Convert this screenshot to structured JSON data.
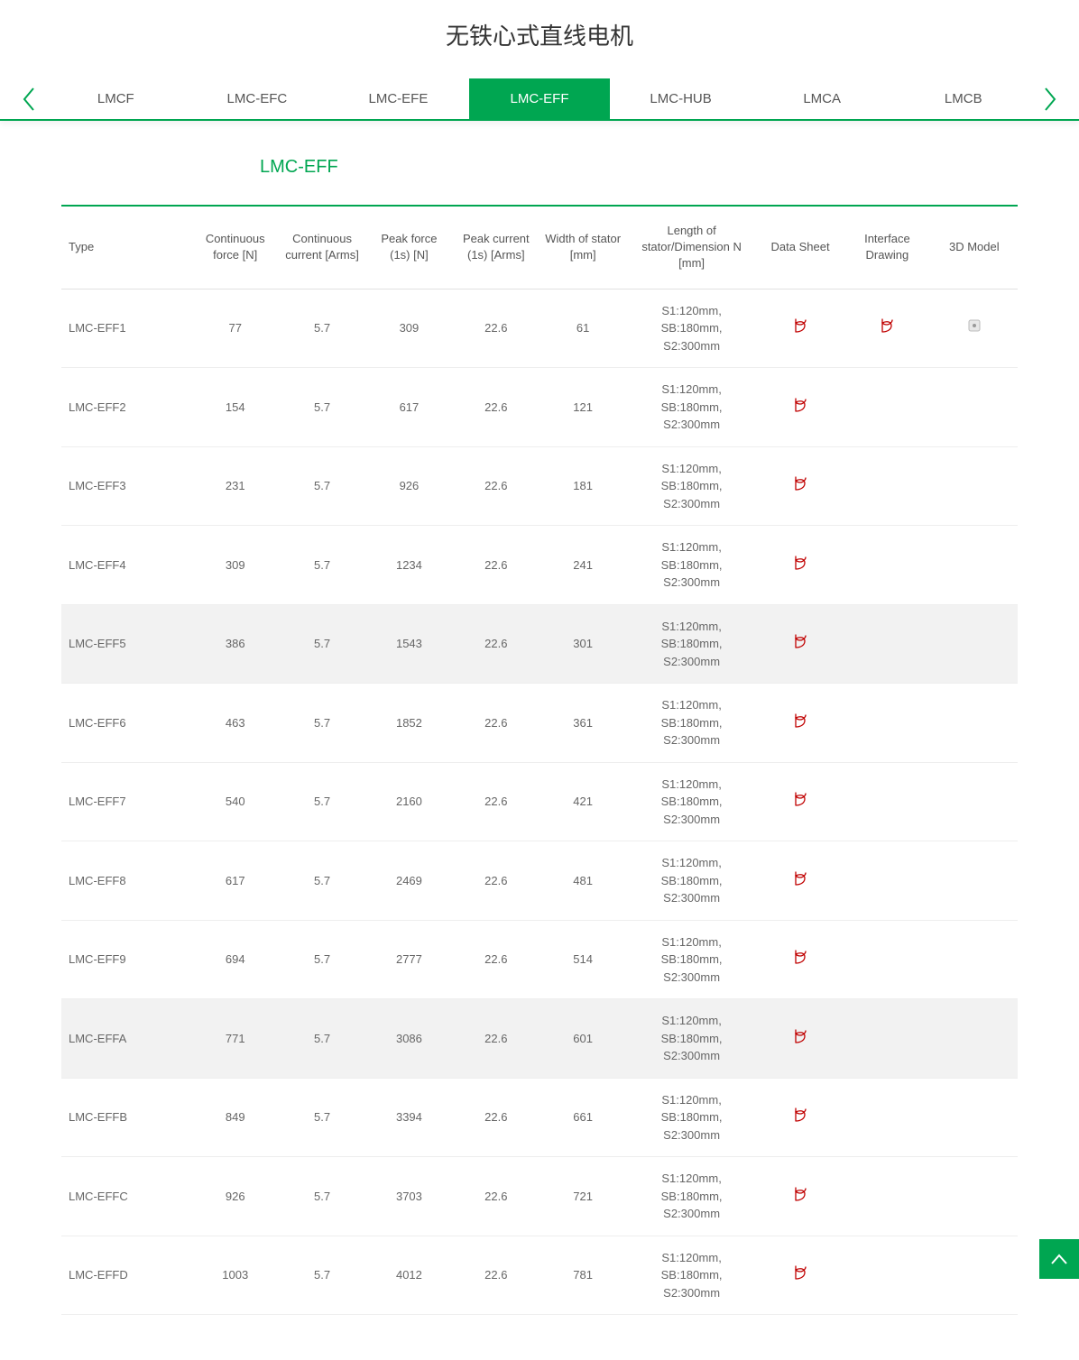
{
  "colors": {
    "accent": "#00a651",
    "text": "#333333",
    "muted": "#666666",
    "pdf": "#c00000",
    "border": "#e0e0e0",
    "highlight_bg": "#f2f2f2"
  },
  "page": {
    "title": "无铁心式直线电机"
  },
  "tabs": {
    "items": [
      {
        "label": "LMCF"
      },
      {
        "label": "LMC-EFC"
      },
      {
        "label": "LMC-EFE"
      },
      {
        "label": "LMC-EFF"
      },
      {
        "label": "LMC-HUB"
      },
      {
        "label": "LMCA"
      },
      {
        "label": "LMCB"
      }
    ],
    "active_index": 3
  },
  "section": {
    "title": "LMC-EFF"
  },
  "table": {
    "columns": [
      "Type",
      "Continuous force [N]",
      "Continuous current [Arms]",
      "Peak force (1s) [N]",
      "Peak current (1s) [Arms]",
      "Width of stator [mm]",
      "Length of stator/Dimension N [mm]",
      "Data Sheet",
      "Interface Drawing",
      "3D Model"
    ],
    "rows": [
      {
        "type": "LMC-EFF1",
        "cf": "77",
        "cc": "5.7",
        "pf": "309",
        "pc": "22.6",
        "ws": "61",
        "ls": "S1:120mm, SB:180mm, S2:300mm",
        "ds": true,
        "id": true,
        "md": true,
        "hl": false
      },
      {
        "type": "LMC-EFF2",
        "cf": "154",
        "cc": "5.7",
        "pf": "617",
        "pc": "22.6",
        "ws": "121",
        "ls": "S1:120mm, SB:180mm, S2:300mm",
        "ds": true,
        "id": false,
        "md": false,
        "hl": false
      },
      {
        "type": "LMC-EFF3",
        "cf": "231",
        "cc": "5.7",
        "pf": "926",
        "pc": "22.6",
        "ws": "181",
        "ls": "S1:120mm, SB:180mm, S2:300mm",
        "ds": true,
        "id": false,
        "md": false,
        "hl": false
      },
      {
        "type": "LMC-EFF4",
        "cf": "309",
        "cc": "5.7",
        "pf": "1234",
        "pc": "22.6",
        "ws": "241",
        "ls": "S1:120mm, SB:180mm, S2:300mm",
        "ds": true,
        "id": false,
        "md": false,
        "hl": false
      },
      {
        "type": "LMC-EFF5",
        "cf": "386",
        "cc": "5.7",
        "pf": "1543",
        "pc": "22.6",
        "ws": "301",
        "ls": "S1:120mm, SB:180mm, S2:300mm",
        "ds": true,
        "id": false,
        "md": false,
        "hl": true
      },
      {
        "type": "LMC-EFF6",
        "cf": "463",
        "cc": "5.7",
        "pf": "1852",
        "pc": "22.6",
        "ws": "361",
        "ls": "S1:120mm, SB:180mm, S2:300mm",
        "ds": true,
        "id": false,
        "md": false,
        "hl": false
      },
      {
        "type": "LMC-EFF7",
        "cf": "540",
        "cc": "5.7",
        "pf": "2160",
        "pc": "22.6",
        "ws": "421",
        "ls": "S1:120mm, SB:180mm, S2:300mm",
        "ds": true,
        "id": false,
        "md": false,
        "hl": false
      },
      {
        "type": "LMC-EFF8",
        "cf": "617",
        "cc": "5.7",
        "pf": "2469",
        "pc": "22.6",
        "ws": "481",
        "ls": "S1:120mm, SB:180mm, S2:300mm",
        "ds": true,
        "id": false,
        "md": false,
        "hl": false
      },
      {
        "type": "LMC-EFF9",
        "cf": "694",
        "cc": "5.7",
        "pf": "2777",
        "pc": "22.6",
        "ws": "514",
        "ls": "S1:120mm, SB:180mm, S2:300mm",
        "ds": true,
        "id": false,
        "md": false,
        "hl": false
      },
      {
        "type": "LMC-EFFA",
        "cf": "771",
        "cc": "5.7",
        "pf": "3086",
        "pc": "22.6",
        "ws": "601",
        "ls": "S1:120mm, SB:180mm, S2:300mm",
        "ds": true,
        "id": false,
        "md": false,
        "hl": true
      },
      {
        "type": "LMC-EFFB",
        "cf": "849",
        "cc": "5.7",
        "pf": "3394",
        "pc": "22.6",
        "ws": "661",
        "ls": "S1:120mm, SB:180mm, S2:300mm",
        "ds": true,
        "id": false,
        "md": false,
        "hl": false
      },
      {
        "type": "LMC-EFFC",
        "cf": "926",
        "cc": "5.7",
        "pf": "3703",
        "pc": "22.6",
        "ws": "721",
        "ls": "S1:120mm, SB:180mm, S2:300mm",
        "ds": true,
        "id": false,
        "md": false,
        "hl": false
      },
      {
        "type": "LMC-EFFD",
        "cf": "1003",
        "cc": "5.7",
        "pf": "4012",
        "pc": "22.6",
        "ws": "781",
        "ls": "S1:120mm, SB:180mm, S2:300mm",
        "ds": true,
        "id": false,
        "md": false,
        "hl": false
      }
    ]
  }
}
